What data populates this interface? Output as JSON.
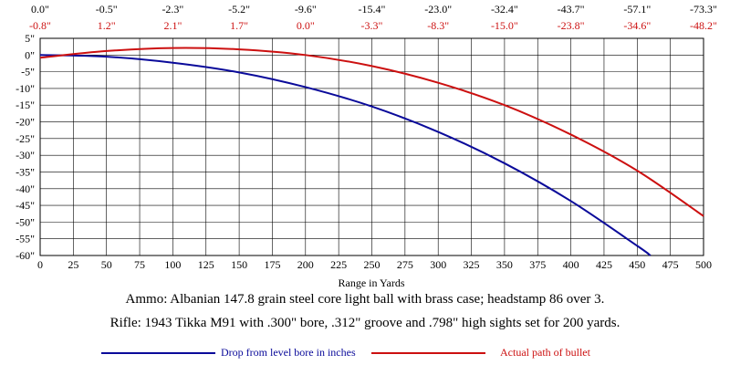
{
  "chart_data": {
    "type": "line",
    "xlabel": "Range in Yards",
    "ylabel": "",
    "xlim": [
      0,
      500
    ],
    "ylim": [
      -60,
      5
    ],
    "x_ticks": [
      0,
      25,
      50,
      75,
      100,
      125,
      150,
      175,
      200,
      225,
      250,
      275,
      300,
      325,
      350,
      375,
      400,
      425,
      450,
      475,
      500
    ],
    "y_ticks": [
      5,
      0,
      -5,
      -10,
      -15,
      -20,
      -25,
      -30,
      -35,
      -40,
      -45,
      -50,
      -55,
      -60
    ],
    "y_tick_labels": [
      "5\"",
      "0\"",
      "-5\"",
      "-10\"",
      "-15\"",
      "-20\"",
      "-25\"",
      "-30\"",
      "-35\"",
      "-40\"",
      "-45\"",
      "-50\"",
      "-55\"",
      "-60\""
    ],
    "grid": true,
    "top_table": {
      "x": [
        0,
        50,
        100,
        150,
        200,
        250,
        300,
        350,
        400,
        450,
        500
      ],
      "drop_labels": [
        "0.0\"",
        "-0.5\"",
        "-2.3\"",
        "-5.2\"",
        "-9.6\"",
        "-15.4\"",
        "-23.0\"",
        "-32.4\"",
        "-43.7\"",
        "-57.1\"",
        "-73.3\""
      ],
      "path_labels": [
        "-0.8\"",
        "1.2\"",
        "2.1\"",
        "1.7\"",
        "0.0\"",
        "-3.3\"",
        "-8.3\"",
        "-15.0\"",
        "-23.8\"",
        "-34.6\"",
        "-48.2\""
      ]
    },
    "series": [
      {
        "name": "Drop from level bore in inches",
        "color": "#0a0a9a",
        "x": [
          0,
          50,
          100,
          150,
          200,
          250,
          300,
          350,
          400,
          450,
          460
        ],
        "y": [
          0.0,
          -0.5,
          -2.3,
          -5.2,
          -9.6,
          -15.4,
          -23.0,
          -32.4,
          -43.7,
          -57.1,
          -60.0
        ]
      },
      {
        "name": "Actual path of bullet",
        "color": "#cc1010",
        "x": [
          0,
          50,
          100,
          150,
          200,
          250,
          300,
          350,
          400,
          450,
          500
        ],
        "y": [
          -0.8,
          1.2,
          2.1,
          1.7,
          0.0,
          -3.3,
          -8.3,
          -15.0,
          -23.8,
          -34.6,
          -48.2
        ]
      }
    ],
    "top_label_colors": {
      "drop": "#0a0a9a",
      "path": "#cc1010"
    }
  },
  "captions": {
    "ammo": "Ammo:  Albanian 147.8 grain steel core light ball with brass case; headstamp 86 over 3.",
    "rifle": "Rifle:  1943 Tikka M91 with .300\" bore, .312\" groove and .798\" high sights set for 200 yards."
  },
  "legend": {
    "drop": "Drop from level bore in inches",
    "path": "Actual path of bullet"
  }
}
